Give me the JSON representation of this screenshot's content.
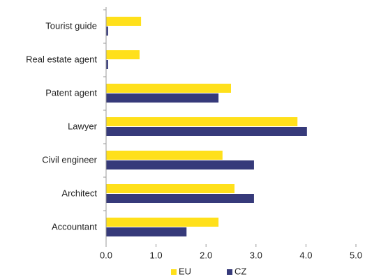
{
  "chart_data": {
    "type": "bar",
    "orientation": "horizontal",
    "categories": [
      "Tourist guide",
      "Real estate agent",
      "Patent agent",
      "Lawyer",
      "Civil engineer",
      "Architect",
      "Accountant"
    ],
    "series": [
      {
        "name": "EU",
        "color": "#ffe01b",
        "values": [
          0.7,
          0.67,
          2.5,
          3.83,
          2.33,
          2.57,
          2.25
        ]
      },
      {
        "name": "CZ",
        "color": "#363a7a",
        "values": [
          0.04,
          0.04,
          2.25,
          4.02,
          2.96,
          2.96,
          1.61
        ]
      }
    ],
    "xlim": [
      0,
      5
    ],
    "xticks": [
      {
        "value": 0,
        "label": "0.0"
      },
      {
        "value": 1,
        "label": "1.0"
      },
      {
        "value": 2,
        "label": "2.0"
      },
      {
        "value": 3,
        "label": "3.0"
      },
      {
        "value": 4,
        "label": "4.0"
      },
      {
        "value": 5,
        "label": "5.0"
      }
    ],
    "legend": "bottom"
  }
}
